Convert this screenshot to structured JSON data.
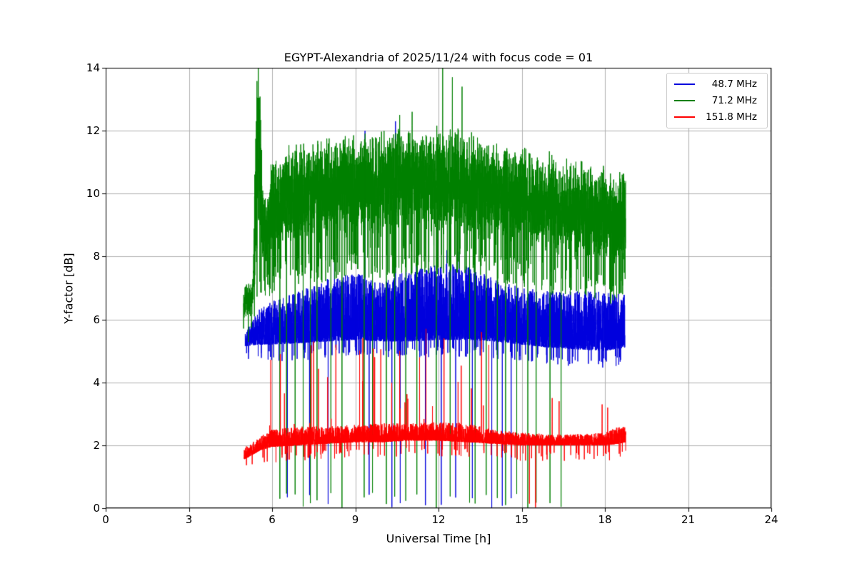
{
  "chart_data": {
    "type": "line",
    "title": "EGYPT-Alexandria of 2025/11/24 with focus code = 01",
    "xlabel": "Universal Time [h]",
    "ylabel": "Y-factor [dB]",
    "xlim": [
      0,
      24
    ],
    "ylim": [
      0,
      14
    ],
    "xticks": [
      0,
      3,
      6,
      9,
      12,
      15,
      18,
      21,
      24
    ],
    "yticks": [
      0,
      2,
      4,
      6,
      8,
      10,
      12,
      14
    ],
    "grid": true,
    "grid_color": "#b0b0b0",
    "frame_color": "#000000",
    "background": "#ffffff",
    "legend_position": "upper right",
    "points_per_hour": 400,
    "series": [
      {
        "name": "48.7 MHz",
        "color": "#0000dd",
        "seed": 7,
        "x_range": [
          5.03,
          18.72
        ],
        "dist": "low",
        "bias": 1.8,
        "tail_prob": 0.03,
        "tail_depth": 0.35,
        "drop_level": 0.5,
        "band": [
          [
            5.03,
            5.15,
            5.55
          ],
          [
            5.5,
            5.2,
            6.3
          ],
          [
            6.0,
            5.2,
            6.6
          ],
          [
            7.0,
            5.25,
            6.9
          ],
          [
            8.0,
            5.3,
            7.3
          ],
          [
            9.0,
            5.35,
            7.5
          ],
          [
            10.0,
            5.3,
            7.2
          ],
          [
            11.0,
            5.3,
            7.6
          ],
          [
            12.0,
            5.35,
            7.8
          ],
          [
            13.0,
            5.35,
            7.7
          ],
          [
            14.0,
            5.3,
            7.3
          ],
          [
            15.0,
            5.2,
            7.0
          ],
          [
            16.0,
            5.1,
            6.9
          ],
          [
            17.0,
            5.05,
            6.9
          ],
          [
            18.0,
            5.0,
            6.9
          ],
          [
            18.72,
            5.1,
            6.8
          ]
        ],
        "spikes": [
          [
            8.25,
            8.1
          ],
          [
            9.35,
            12.0
          ],
          [
            10.45,
            12.3
          ],
          [
            11.2,
            8.0
          ],
          [
            12.3,
            8.2
          ],
          [
            12.75,
            8.15
          ],
          [
            13.3,
            8.05
          ]
        ],
        "dropouts": [
          6.55,
          7.35,
          8.02,
          9.5,
          10.32,
          10.62,
          11.53,
          12.1,
          12.62,
          13.22,
          13.92,
          14.3,
          14.62
        ]
      },
      {
        "name": "71.2 MHz",
        "color": "#008000",
        "seed": 13,
        "x_range": [
          4.97,
          18.75
        ],
        "dist": "mid",
        "tail_prob": 0.06,
        "tail_depth": 1.0,
        "drop_level": 0.5,
        "band": [
          [
            4.97,
            6.0,
            7.1
          ],
          [
            5.3,
            6.1,
            7.3
          ],
          [
            5.45,
            7.5,
            14.4
          ],
          [
            5.55,
            8.0,
            14.6
          ],
          [
            5.65,
            7.8,
            10.5
          ],
          [
            5.8,
            7.6,
            9.8
          ],
          [
            6.0,
            8.0,
            11.3
          ],
          [
            6.5,
            8.2,
            11.6
          ],
          [
            7.0,
            8.3,
            11.8
          ],
          [
            8.0,
            8.4,
            11.9
          ],
          [
            9.0,
            8.5,
            12.0
          ],
          [
            10.0,
            8.5,
            12.1
          ],
          [
            11.0,
            8.6,
            12.2
          ],
          [
            12.0,
            8.6,
            12.2
          ],
          [
            13.0,
            8.5,
            12.1
          ],
          [
            14.0,
            8.3,
            11.8
          ],
          [
            15.0,
            8.2,
            11.6
          ],
          [
            16.0,
            8.0,
            11.4
          ],
          [
            17.0,
            7.8,
            11.2
          ],
          [
            18.0,
            7.6,
            10.9
          ],
          [
            18.4,
            7.5,
            10.8
          ],
          [
            18.75,
            7.8,
            11.0
          ]
        ],
        "spikes": [
          [
            5.5,
            14.6
          ],
          [
            10.6,
            12.5
          ],
          [
            11.05,
            12.6
          ],
          [
            12.15,
            14.3
          ],
          [
            12.5,
            13.7
          ],
          [
            12.85,
            13.4
          ]
        ],
        "dropouts": [
          6.28,
          6.52,
          6.83,
          7.12,
          7.38,
          7.62,
          8.12,
          8.52,
          9.32,
          9.62,
          10.12,
          10.42,
          10.82,
          11.22,
          11.92,
          12.42,
          13.12,
          13.32,
          13.72,
          14.12,
          14.42,
          14.82,
          15.22,
          15.52,
          16.02,
          16.42
        ]
      },
      {
        "name": "151.8 MHz",
        "color": "#ff0000",
        "seed": 21,
        "x_range": [
          4.99,
          18.75
        ],
        "dist": "low",
        "bias": 2.2,
        "tail_prob": 0.02,
        "tail_depth": 0.3,
        "drop_level": 0.2,
        "rand_spikes": {
          "range": [
            5.9,
            13.9
          ],
          "prob": 0.012,
          "extra": 2.8
        },
        "band": [
          [
            4.99,
            1.55,
            1.95
          ],
          [
            5.3,
            1.7,
            2.1
          ],
          [
            5.6,
            1.85,
            2.3
          ],
          [
            6.0,
            1.95,
            2.5
          ],
          [
            7.0,
            2.0,
            2.6
          ],
          [
            8.0,
            2.05,
            2.6
          ],
          [
            9.0,
            2.1,
            2.65
          ],
          [
            10.0,
            2.1,
            2.7
          ],
          [
            11.0,
            2.15,
            2.7
          ],
          [
            12.0,
            2.15,
            2.75
          ],
          [
            13.0,
            2.1,
            2.7
          ],
          [
            14.0,
            2.05,
            2.5
          ],
          [
            15.0,
            2.0,
            2.4
          ],
          [
            16.0,
            2.0,
            2.35
          ],
          [
            17.0,
            2.0,
            2.35
          ],
          [
            18.0,
            2.0,
            2.4
          ],
          [
            18.5,
            2.05,
            2.6
          ],
          [
            18.75,
            2.1,
            2.6
          ]
        ],
        "spikes": [
          [
            6.3,
            4.9
          ],
          [
            7.5,
            5.3
          ],
          [
            8.3,
            5.2
          ],
          [
            9.7,
            4.8
          ],
          [
            10.6,
            5.0
          ],
          [
            11.55,
            5.7
          ],
          [
            12.2,
            5.4
          ],
          [
            13.55,
            5.6
          ],
          [
            16.1,
            3.5
          ],
          [
            16.35,
            3.4
          ],
          [
            17.9,
            3.3
          ],
          [
            18.1,
            3.2
          ]
        ],
        "dropouts": [
          15.28,
          15.5
        ]
      }
    ]
  }
}
